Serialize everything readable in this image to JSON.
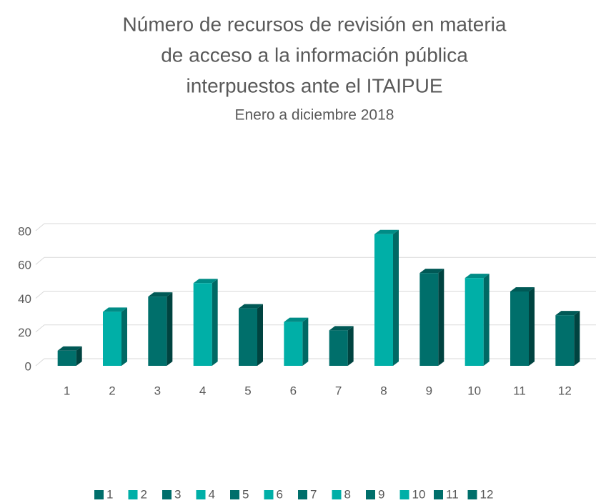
{
  "chart_data": {
    "type": "bar",
    "title": [
      "Número de recursos de revisión en materia",
      "de acceso a la información pública",
      "interpuestos ante el ITAIPUE"
    ],
    "subtitle": "Enero a diciembre 2018",
    "categories": [
      "1",
      "2",
      "3",
      "4",
      "5",
      "6",
      "7",
      "8",
      "9",
      "10",
      "11",
      "12"
    ],
    "values": [
      9,
      32,
      41,
      49,
      34,
      26,
      21,
      78,
      55,
      52,
      44,
      30
    ],
    "colors": [
      "#006f6b",
      "#00afa7",
      "#006f6b",
      "#00afa7",
      "#006f6b",
      "#00afa7",
      "#006f6b",
      "#00afa7",
      "#006f6b",
      "#00afa7",
      "#006f6b",
      "#006f6b"
    ],
    "ylim": [
      0,
      80
    ],
    "yticks": [
      0,
      20,
      40,
      60,
      80
    ],
    "grid": true,
    "legend": "bottom"
  }
}
